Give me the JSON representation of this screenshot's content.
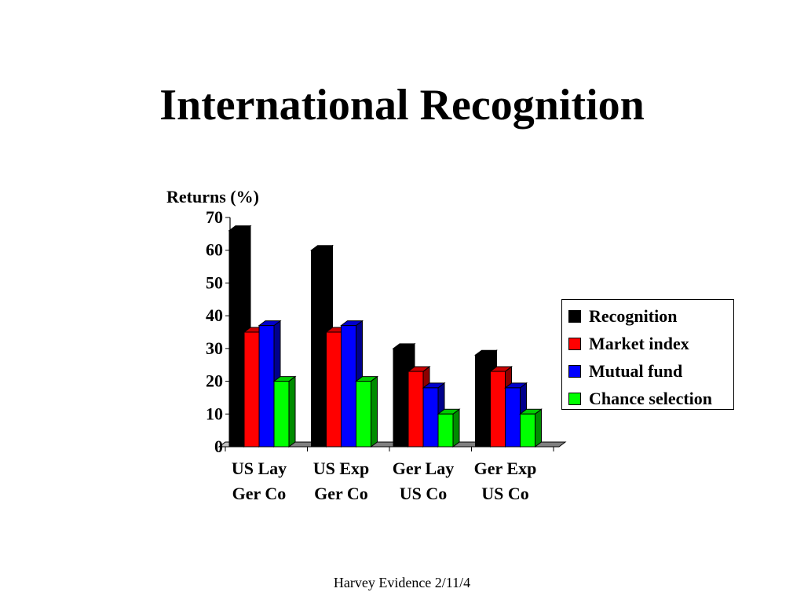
{
  "slide": {
    "title": "International Recognition",
    "footer": "Harvey Evidence 2/11/4"
  },
  "chart_data": {
    "type": "bar",
    "title": "",
    "ylabel": "Returns (%)",
    "xlabel": "",
    "ylim": [
      0,
      70
    ],
    "yticks": [
      0,
      10,
      20,
      30,
      40,
      50,
      60,
      70
    ],
    "categories": [
      [
        "US Lay",
        "Ger Co"
      ],
      [
        "US Exp",
        "Ger Co"
      ],
      [
        "Ger Lay",
        "US Co"
      ],
      [
        "Ger Exp",
        "US Co"
      ]
    ],
    "series": [
      {
        "name": "Recognition",
        "color": "#000000",
        "values": [
          66,
          60,
          30,
          28
        ]
      },
      {
        "name": "Market index",
        "color": "#ff0000",
        "values": [
          35,
          35,
          23,
          23
        ]
      },
      {
        "name": "Mutual fund",
        "color": "#0000ff",
        "values": [
          37,
          37,
          18,
          18
        ]
      },
      {
        "name": "Chance selection",
        "color": "#00ff00",
        "values": [
          20,
          20,
          10,
          10
        ]
      }
    ],
    "grid": false,
    "legend": "right",
    "style": "3d"
  }
}
